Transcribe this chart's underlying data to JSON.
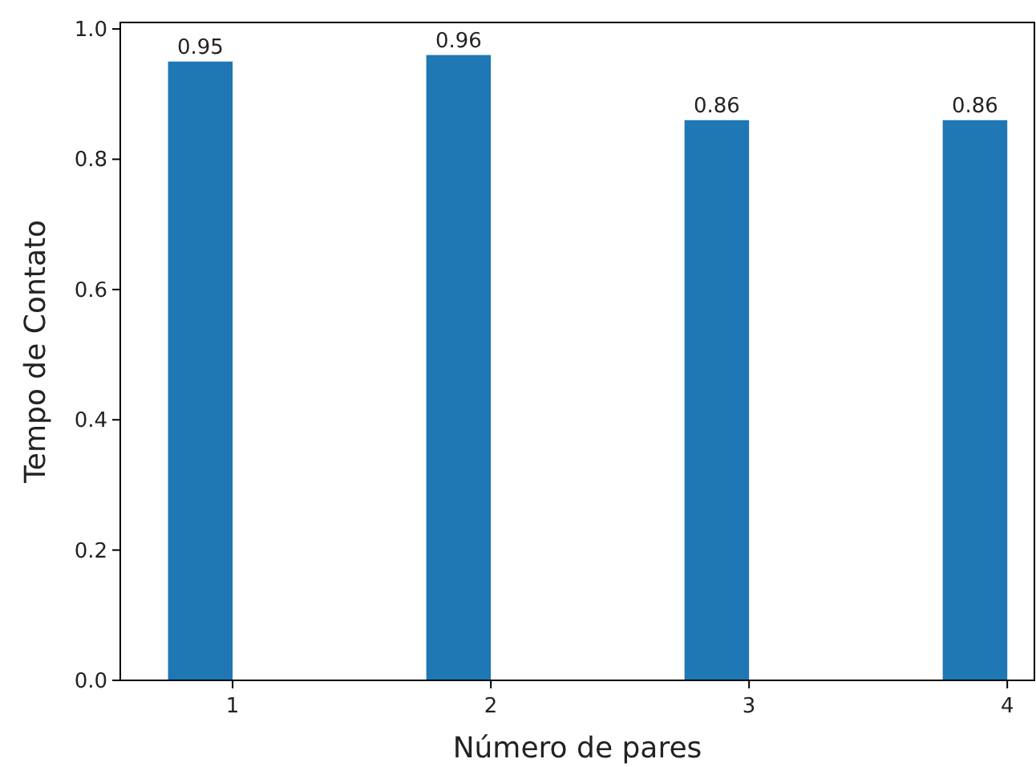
{
  "chart_data": {
    "type": "bar",
    "xlabel": "Número de pares",
    "ylabel": "Tempo de Contato",
    "x": [
      0.875,
      1.875,
      2.875,
      3.875
    ],
    "values": [
      0.95,
      0.96,
      0.86,
      0.86
    ],
    "color": "#1f77b4",
    "xlim": [
      0.565,
      4.105
    ],
    "xticks": [
      1,
      2,
      3,
      4
    ],
    "ylim": [
      0,
      1.01
    ],
    "yticks": [
      {
        "value": 0,
        "label": "0.0"
      },
      {
        "value": 0.2,
        "label": "0.2"
      },
      {
        "value": 0.4,
        "label": "0.4"
      },
      {
        "value": 0.6,
        "label": "0.6"
      },
      {
        "value": 0.8,
        "label": "0.8"
      },
      {
        "value": 1,
        "label": "1.0"
      }
    ],
    "data_labels": true
  }
}
